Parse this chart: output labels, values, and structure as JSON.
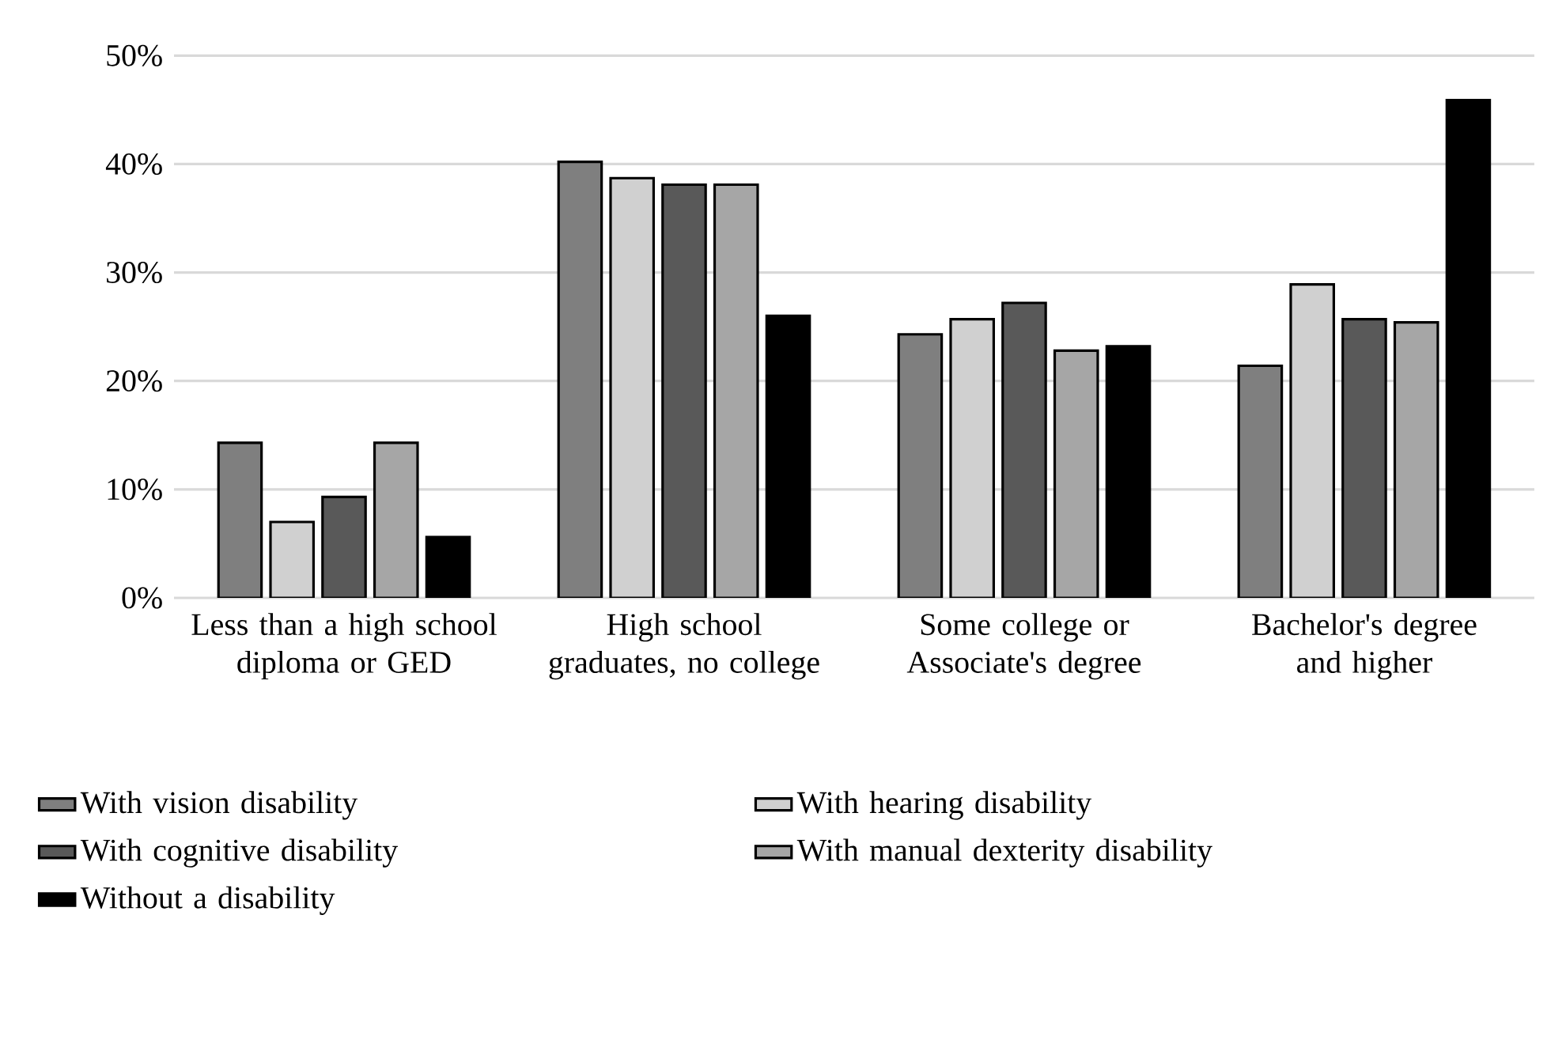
{
  "chart_data": {
    "type": "bar",
    "categories": [
      "Less than a high school diploma or GED",
      "High school graduates, no college",
      "Some college or Associate's degree",
      "Bachelor's degree and higher"
    ],
    "series": [
      {
        "name": "With vision disability",
        "color": "#7f7f7f",
        "values": [
          14.3,
          40.2,
          24.3,
          21.4
        ]
      },
      {
        "name": "With hearing disability",
        "color": "#d0d0d0",
        "values": [
          7.0,
          38.7,
          25.7,
          28.9
        ]
      },
      {
        "name": "With cognitive disability",
        "color": "#595959",
        "values": [
          9.3,
          38.1,
          27.2,
          25.7
        ]
      },
      {
        "name": "With manual dexterity disability",
        "color": "#a6a6a6",
        "values": [
          14.3,
          38.1,
          22.8,
          25.4
        ]
      },
      {
        "name": "Without a disability",
        "color": "#000000",
        "values": [
          5.6,
          26.0,
          23.2,
          45.9
        ]
      }
    ],
    "ylim": [
      0,
      50
    ],
    "yticks": [
      {
        "value": 0,
        "label": "0%"
      },
      {
        "value": 10,
        "label": "10%"
      },
      {
        "value": 20,
        "label": "20%"
      },
      {
        "value": 30,
        "label": "30%"
      },
      {
        "value": 40,
        "label": "40%"
      },
      {
        "value": 50,
        "label": "50%"
      }
    ],
    "grid": "y",
    "legend": "bottom"
  }
}
